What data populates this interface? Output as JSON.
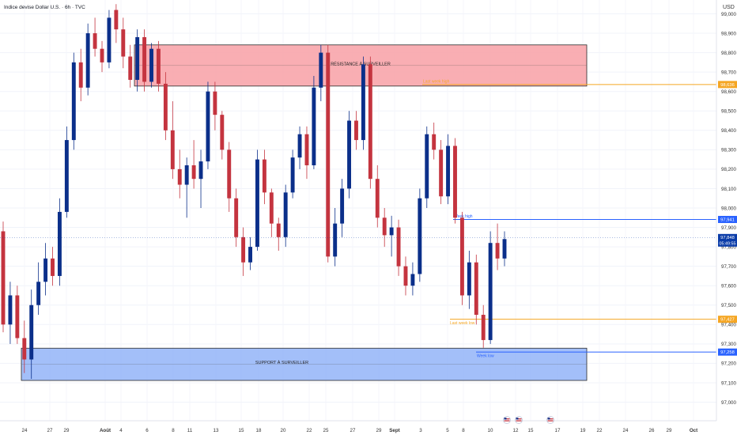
{
  "header": {
    "title": "Indice devise Dollar U.S. · 6h · TVC",
    "currency": "USD"
  },
  "chart_data": {
    "type": "candlestick",
    "ylim": [
      96.95,
      99.05
    ],
    "y_ticks": [
      "99,000",
      "98,900",
      "98,800",
      "98,700",
      "98,600",
      "98,500",
      "98,400",
      "98,300",
      "98,200",
      "98,100",
      "98,000",
      "97,900",
      "97,800",
      "97,700",
      "97,600",
      "97,500",
      "97,400",
      "97,300",
      "97,200",
      "97,100",
      "97,000"
    ],
    "y_tick_values": [
      99.0,
      98.9,
      98.8,
      98.7,
      98.6,
      98.5,
      98.4,
      98.3,
      98.2,
      98.1,
      98.0,
      97.9,
      97.8,
      97.7,
      97.6,
      97.5,
      97.4,
      97.3,
      97.2,
      97.1,
      97.0
    ],
    "x_ticks": [
      {
        "label": "24",
        "bold": false
      },
      {
        "label": "27",
        "bold": false
      },
      {
        "label": "29",
        "bold": false
      },
      {
        "label": "Août",
        "bold": true
      },
      {
        "label": "4",
        "bold": false
      },
      {
        "label": "6",
        "bold": false
      },
      {
        "label": "8",
        "bold": false
      },
      {
        "label": "11",
        "bold": false
      },
      {
        "label": "13",
        "bold": false
      },
      {
        "label": "15",
        "bold": false
      },
      {
        "label": "18",
        "bold": false
      },
      {
        "label": "20",
        "bold": false
      },
      {
        "label": "22",
        "bold": false
      },
      {
        "label": "25",
        "bold": false
      },
      {
        "label": "27",
        "bold": false
      },
      {
        "label": "29",
        "bold": false
      },
      {
        "label": "Sept",
        "bold": true
      },
      {
        "label": "3",
        "bold": false
      },
      {
        "label": "5",
        "bold": false
      },
      {
        "label": "8",
        "bold": false
      },
      {
        "label": "10",
        "bold": false
      },
      {
        "label": "12",
        "bold": false
      },
      {
        "label": "15",
        "bold": false
      },
      {
        "label": "17",
        "bold": false
      },
      {
        "label": "19",
        "bold": false
      },
      {
        "label": "22",
        "bold": false
      },
      {
        "label": "24",
        "bold": false
      },
      {
        "label": "26",
        "bold": false
      },
      {
        "label": "29",
        "bold": false
      },
      {
        "label": "Oct",
        "bold": true
      }
    ],
    "zones": [
      {
        "label": "RÉSISTANCE À SURVEILLER",
        "top": 98.84,
        "bottom": 98.628,
        "fill": "#f8a0a6",
        "stroke": "#2a2a2a"
      },
      {
        "label": "SUPPORT À SURVEILLER",
        "top": 97.278,
        "bottom": 97.112,
        "fill": "#93b4f8",
        "stroke": "#2a2a2a"
      }
    ],
    "levels": [
      {
        "label": "Last week high",
        "value": 98.636,
        "price_label": "98,636",
        "color": "#f5a623"
      },
      {
        "label": "Week high",
        "value": 97.941,
        "price_label": "97,941",
        "color": "#2962ff"
      },
      {
        "label": "Last week low",
        "value": 97.427,
        "price_label": "97,427",
        "color": "#f5a623"
      },
      {
        "label": "Week low",
        "value": 97.258,
        "price_label": "97,258",
        "color": "#2962ff"
      }
    ],
    "current_price": {
      "value": 97.848,
      "label": "97,848",
      "countdown": "05:49:55",
      "color": "#0b3ca8"
    },
    "colors": {
      "up": "#0b2f8a",
      "down": "#c4343f"
    },
    "series": [
      {
        "o": 97.88,
        "h": 97.93,
        "l": 97.36,
        "c": 97.4
      },
      {
        "o": 97.4,
        "h": 97.62,
        "l": 97.3,
        "c": 97.55
      },
      {
        "o": 97.55,
        "h": 97.6,
        "l": 97.3,
        "c": 97.33
      },
      {
        "o": 97.33,
        "h": 97.42,
        "l": 97.15,
        "c": 97.22
      },
      {
        "o": 97.22,
        "h": 97.58,
        "l": 97.12,
        "c": 97.5
      },
      {
        "o": 97.5,
        "h": 97.72,
        "l": 97.45,
        "c": 97.62
      },
      {
        "o": 97.62,
        "h": 97.82,
        "l": 97.55,
        "c": 97.74
      },
      {
        "o": 97.74,
        "h": 97.8,
        "l": 97.6,
        "c": 97.65
      },
      {
        "o": 97.65,
        "h": 98.05,
        "l": 97.6,
        "c": 97.98
      },
      {
        "o": 97.98,
        "h": 98.42,
        "l": 97.95,
        "c": 98.35
      },
      {
        "o": 98.35,
        "h": 98.8,
        "l": 98.3,
        "c": 98.75
      },
      {
        "o": 98.75,
        "h": 98.82,
        "l": 98.55,
        "c": 98.62
      },
      {
        "o": 98.62,
        "h": 98.95,
        "l": 98.58,
        "c": 98.9
      },
      {
        "o": 98.9,
        "h": 98.98,
        "l": 98.78,
        "c": 98.82
      },
      {
        "o": 98.82,
        "h": 98.86,
        "l": 98.7,
        "c": 98.75
      },
      {
        "o": 98.75,
        "h": 99.02,
        "l": 98.72,
        "c": 98.98
      },
      {
        "o": 99.02,
        "h": 99.05,
        "l": 98.85,
        "c": 98.92
      },
      {
        "o": 98.92,
        "h": 98.98,
        "l": 98.72,
        "c": 98.78
      },
      {
        "o": 98.78,
        "h": 98.84,
        "l": 98.62,
        "c": 98.66
      },
      {
        "o": 98.66,
        "h": 98.92,
        "l": 98.6,
        "c": 98.88
      },
      {
        "o": 98.88,
        "h": 98.92,
        "l": 98.6,
        "c": 98.65
      },
      {
        "o": 98.65,
        "h": 98.85,
        "l": 98.62,
        "c": 98.82
      },
      {
        "o": 98.82,
        "h": 98.86,
        "l": 98.6,
        "c": 98.64
      },
      {
        "o": 98.64,
        "h": 98.7,
        "l": 98.35,
        "c": 98.4
      },
      {
        "o": 98.4,
        "h": 98.55,
        "l": 98.15,
        "c": 98.2
      },
      {
        "o": 98.2,
        "h": 98.3,
        "l": 98.05,
        "c": 98.12
      },
      {
        "o": 98.12,
        "h": 98.26,
        "l": 97.95,
        "c": 98.22
      },
      {
        "o": 98.22,
        "h": 98.35,
        "l": 98.1,
        "c": 98.15
      },
      {
        "o": 98.15,
        "h": 98.3,
        "l": 98.0,
        "c": 98.24
      },
      {
        "o": 98.24,
        "h": 98.65,
        "l": 98.2,
        "c": 98.6
      },
      {
        "o": 98.6,
        "h": 98.65,
        "l": 98.4,
        "c": 98.48
      },
      {
        "o": 98.48,
        "h": 98.5,
        "l": 98.25,
        "c": 98.3
      },
      {
        "o": 98.3,
        "h": 98.34,
        "l": 97.98,
        "c": 98.05
      },
      {
        "o": 98.05,
        "h": 98.1,
        "l": 97.8,
        "c": 97.85
      },
      {
        "o": 97.85,
        "h": 97.9,
        "l": 97.65,
        "c": 97.72
      },
      {
        "o": 97.72,
        "h": 97.85,
        "l": 97.68,
        "c": 97.8
      },
      {
        "o": 97.8,
        "h": 98.3,
        "l": 97.78,
        "c": 98.25
      },
      {
        "o": 98.25,
        "h": 98.3,
        "l": 98.02,
        "c": 98.08
      },
      {
        "o": 98.08,
        "h": 98.1,
        "l": 97.85,
        "c": 97.92
      },
      {
        "o": 97.92,
        "h": 97.95,
        "l": 97.78,
        "c": 97.85
      },
      {
        "o": 97.85,
        "h": 98.12,
        "l": 97.8,
        "c": 98.08
      },
      {
        "o": 98.08,
        "h": 98.3,
        "l": 98.05,
        "c": 98.26
      },
      {
        "o": 98.26,
        "h": 98.42,
        "l": 98.2,
        "c": 98.38
      },
      {
        "o": 98.38,
        "h": 98.42,
        "l": 98.15,
        "c": 98.22
      },
      {
        "o": 98.22,
        "h": 98.68,
        "l": 98.2,
        "c": 98.62
      },
      {
        "o": 98.62,
        "h": 98.84,
        "l": 98.55,
        "c": 98.8
      },
      {
        "o": 98.8,
        "h": 98.84,
        "l": 97.72,
        "c": 97.75
      },
      {
        "o": 97.75,
        "h": 98.0,
        "l": 97.7,
        "c": 97.92
      },
      {
        "o": 97.92,
        "h": 98.15,
        "l": 97.85,
        "c": 98.1
      },
      {
        "o": 98.1,
        "h": 98.5,
        "l": 98.05,
        "c": 98.45
      },
      {
        "o": 98.45,
        "h": 98.5,
        "l": 98.3,
        "c": 98.35
      },
      {
        "o": 98.35,
        "h": 98.78,
        "l": 98.3,
        "c": 98.74
      },
      {
        "o": 98.74,
        "h": 98.78,
        "l": 98.1,
        "c": 98.15
      },
      {
        "o": 98.15,
        "h": 98.22,
        "l": 97.9,
        "c": 97.95
      },
      {
        "o": 97.95,
        "h": 98.0,
        "l": 97.8,
        "c": 97.86
      },
      {
        "o": 97.86,
        "h": 97.96,
        "l": 97.75,
        "c": 97.9
      },
      {
        "o": 97.9,
        "h": 97.94,
        "l": 97.65,
        "c": 97.7
      },
      {
        "o": 97.7,
        "h": 97.75,
        "l": 97.55,
        "c": 97.6
      },
      {
        "o": 97.6,
        "h": 97.72,
        "l": 97.55,
        "c": 97.66
      },
      {
        "o": 97.66,
        "h": 98.1,
        "l": 97.62,
        "c": 98.05
      },
      {
        "o": 98.05,
        "h": 98.42,
        "l": 98.0,
        "c": 98.38
      },
      {
        "o": 98.38,
        "h": 98.44,
        "l": 98.25,
        "c": 98.3
      },
      {
        "o": 98.3,
        "h": 98.35,
        "l": 98.02,
        "c": 98.06
      },
      {
        "o": 98.06,
        "h": 98.38,
        "l": 98.02,
        "c": 98.32
      },
      {
        "o": 98.32,
        "h": 98.36,
        "l": 97.92,
        "c": 97.95
      },
      {
        "o": 97.95,
        "h": 97.98,
        "l": 97.5,
        "c": 97.55
      },
      {
        "o": 97.55,
        "h": 97.78,
        "l": 97.48,
        "c": 97.72
      },
      {
        "o": 97.72,
        "h": 97.76,
        "l": 97.4,
        "c": 97.45
      },
      {
        "o": 97.45,
        "h": 97.5,
        "l": 97.28,
        "c": 97.32
      },
      {
        "o": 97.32,
        "h": 97.88,
        "l": 97.3,
        "c": 97.82
      },
      {
        "o": 97.82,
        "h": 97.92,
        "l": 97.68,
        "c": 97.74
      },
      {
        "o": 97.74,
        "h": 97.88,
        "l": 97.7,
        "c": 97.84
      }
    ]
  }
}
